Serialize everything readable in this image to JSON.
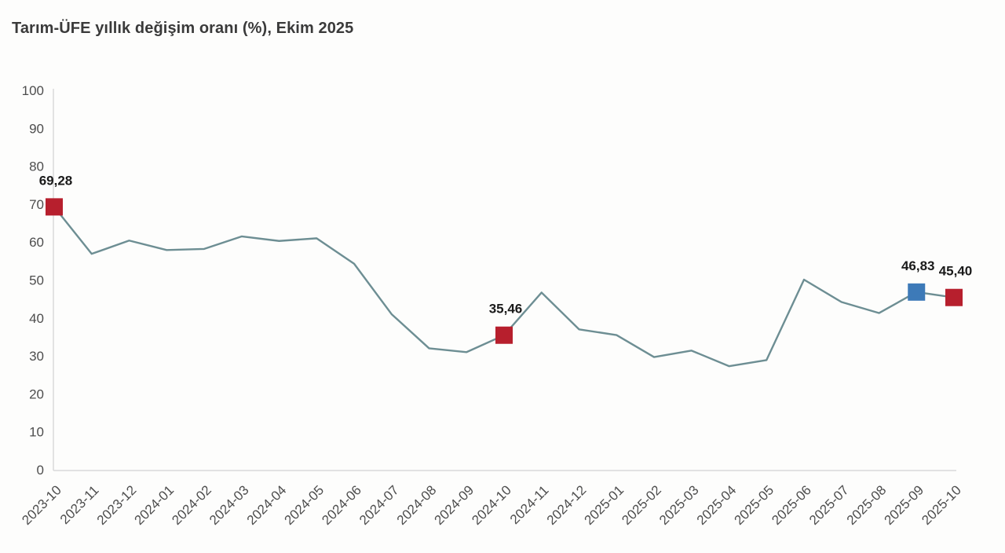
{
  "title": "Tarım-ÜFE yıllık değişim oranı (%), Ekim 2025",
  "colors": {
    "line": "#6d8e93",
    "marker_red": "#b71f2d",
    "marker_blue": "#3d7ab8",
    "axis_line": "#d9d9d9",
    "tick_text": "#4d4d4d",
    "title_text": "#3a3a3a",
    "annotation_text": "#1a1a1a",
    "background": "#fdfdfc"
  },
  "chart_data": {
    "type": "line",
    "title": "Tarım-ÜFE yıllık değişim oranı (%), Ekim 2025",
    "xlabel": "",
    "ylabel": "",
    "ylim": [
      0,
      100
    ],
    "yticks": [
      0,
      10,
      20,
      30,
      40,
      50,
      60,
      70,
      80,
      90,
      100
    ],
    "grid": false,
    "legend": "none",
    "x": [
      "2023-10",
      "2023-11",
      "2023-12",
      "2024-01",
      "2024-02",
      "2024-03",
      "2024-04",
      "2024-05",
      "2024-06",
      "2024-07",
      "2024-08",
      "2024-09",
      "2024-10",
      "2024-11",
      "2024-12",
      "2025-01",
      "2025-02",
      "2025-03",
      "2025-04",
      "2025-05",
      "2025-06",
      "2025-07",
      "2025-08",
      "2025-09",
      "2025-10"
    ],
    "values": [
      69.28,
      56.9,
      60.4,
      57.9,
      58.2,
      61.5,
      60.3,
      61.0,
      54.3,
      41.0,
      32.0,
      31.0,
      35.46,
      46.7,
      37.0,
      35.5,
      29.7,
      31.4,
      27.3,
      28.9,
      50.1,
      44.2,
      41.3,
      46.83,
      45.4
    ],
    "annotations": [
      {
        "x": "2023-10",
        "value": 69.28,
        "label": "69,28",
        "marker": "red"
      },
      {
        "x": "2024-10",
        "value": 35.46,
        "label": "35,46",
        "marker": "red"
      },
      {
        "x": "2025-09",
        "value": 46.83,
        "label": "46,83",
        "marker": "blue"
      },
      {
        "x": "2025-10",
        "value": 45.4,
        "label": "45,40",
        "marker": "red"
      }
    ]
  }
}
